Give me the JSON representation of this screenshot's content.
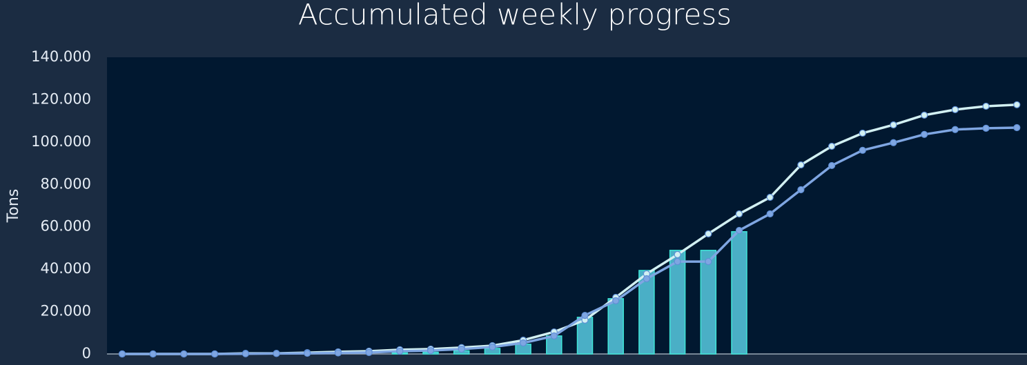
{
  "chart_data": {
    "type": "combo",
    "title": "Accumulated weekly progress",
    "y_label": "Tons",
    "categories": [
      null,
      null,
      null,
      null,
      null,
      null,
      null,
      null,
      null,
      null,
      null,
      null,
      null,
      null,
      null,
      null,
      null,
      null,
      null,
      null,
      null,
      null,
      null,
      null,
      null,
      null,
      null,
      null,
      null,
      null
    ],
    "ylim": [
      0,
      140000
    ],
    "yticks": [
      0,
      {
        "value": 20000,
        "label": "20.000"
      },
      {
        "value": 40000,
        "label": "40.000"
      },
      {
        "value": 60000,
        "label": "60.000"
      },
      {
        "value": 80000,
        "label": "80.000"
      },
      {
        "value": 100000,
        "label": "100.000"
      },
      {
        "value": 120000,
        "label": "120.000"
      },
      {
        "value": 140000,
        "label": "140.000"
      }
    ],
    "series": [
      {
        "type": "bar",
        "color": "#4aafc6",
        "edge_color": "#3fe6d8",
        "values": [
          0,
          0,
          0,
          0,
          0,
          0,
          0,
          0,
          0,
          500,
          800,
          1500,
          2600,
          4600,
          8500,
          17300,
          26100,
          39400,
          48900,
          48900,
          57700,
          null,
          null,
          null,
          null,
          null,
          null,
          null,
          null,
          null
        ]
      },
      {
        "type": "line",
        "color": "#d2f0f2",
        "values": [
          0,
          0,
          0,
          0,
          300,
          300,
          600,
          1000,
          1300,
          2000,
          2300,
          3000,
          3900,
          6500,
          10400,
          16000,
          26700,
          37800,
          46900,
          56700,
          66100,
          73900,
          89200,
          98000,
          104200,
          108100,
          112700,
          115300,
          116900,
          117600
        ]
      },
      {
        "type": "line",
        "color": "#7fa6e2",
        "values": [
          0,
          0,
          0,
          0,
          100,
          200,
          300,
          500,
          700,
          1300,
          1600,
          2300,
          3300,
          5200,
          8500,
          18200,
          25100,
          35500,
          43600,
          43600,
          58300,
          66100,
          77500,
          88900,
          96100,
          99700,
          103600,
          105900,
          106500,
          106800
        ]
      }
    ]
  }
}
